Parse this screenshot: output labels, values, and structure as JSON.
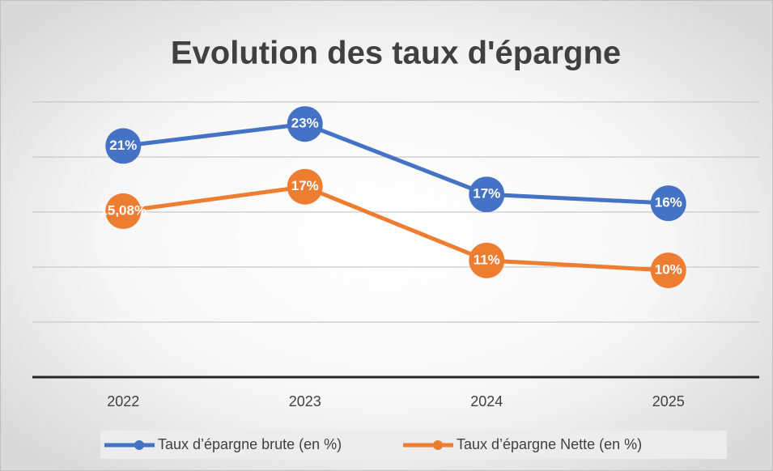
{
  "chart_data": {
    "type": "line",
    "title": "Evolution des taux d'épargne",
    "categories": [
      "2022",
      "2023",
      "2024",
      "2025"
    ],
    "series": [
      {
        "name": "Taux d’épargne brute (en %)",
        "color": "#4472c4",
        "values": [
          21,
          23,
          16.6,
          15.8
        ],
        "value_labels": [
          "21%",
          "23%",
          "17%",
          "16%"
        ]
      },
      {
        "name": "Taux d’épargne Nette (en %)",
        "color": "#ed7d31",
        "values": [
          15.08,
          17.3,
          10.6,
          9.7
        ],
        "value_labels": [
          "15,08%",
          "17%",
          "11%",
          "10%"
        ]
      }
    ],
    "ylim": [
      0,
      25
    ],
    "yticks": [
      0,
      5,
      10,
      15,
      20,
      25
    ],
    "grid": true,
    "legend": "bottom"
  }
}
